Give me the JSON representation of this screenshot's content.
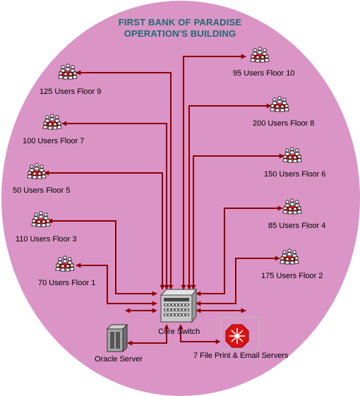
{
  "title": {
    "line1": "FIRST BANK OF PARADISE",
    "line2": "OPERATION'S BUILDING"
  },
  "colors": {
    "background_circle": "#da94c6",
    "connector": "#8b0000",
    "title_text": "#1d6a74",
    "server_octagon": "#e01010"
  },
  "floors": [
    {
      "label": "125 Users Floor 9",
      "icon": "users-cluster-icon"
    },
    {
      "label": "95 Users Floor 10",
      "icon": "users-cluster-icon"
    },
    {
      "label": "100 Users Floor 7",
      "icon": "users-cluster-icon"
    },
    {
      "label": "200 Users Floor 8",
      "icon": "users-cluster-icon"
    },
    {
      "label": "50 Users Floor 5",
      "icon": "users-cluster-icon"
    },
    {
      "label": "150 Users Floor 6",
      "icon": "users-cluster-icon"
    },
    {
      "label": "110 Users Floor 3",
      "icon": "users-cluster-icon"
    },
    {
      "label": "85 Users Floor 4",
      "icon": "users-cluster-icon"
    },
    {
      "label": "70 Users Floor 1",
      "icon": "users-cluster-icon"
    },
    {
      "label": "175 Users Floor 2",
      "icon": "users-cluster-icon"
    }
  ],
  "core": {
    "label": "Core Switch",
    "icon": "network-switch-icon"
  },
  "oracle": {
    "label": "Oracle Server",
    "icon": "server-tower-icon"
  },
  "file_print": {
    "label": "7 File Print & Email Servers",
    "icon": "router-octagon-icon"
  }
}
